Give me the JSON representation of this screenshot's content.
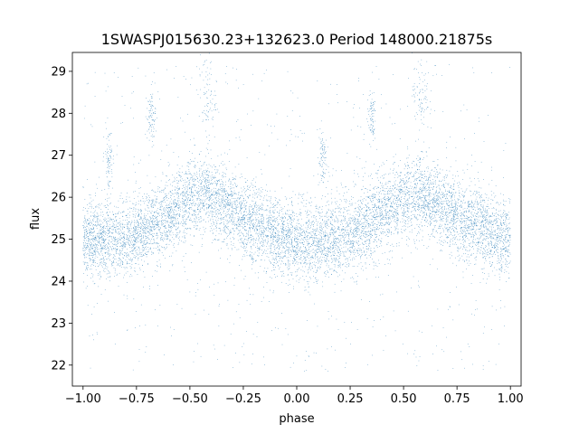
{
  "chart_data": {
    "type": "scatter",
    "title": "1SWASPJ015630.23+132623.0 Period 148000.21875s",
    "xlabel": "phase",
    "ylabel": "flux",
    "xlim": [
      -1.05,
      1.05
    ],
    "ylim": [
      21.5,
      29.45
    ],
    "xticks": [
      -1.0,
      -0.75,
      -0.5,
      -0.25,
      0.0,
      0.25,
      0.5,
      0.75,
      1.0
    ],
    "xtick_labels": [
      "−1.00",
      "−0.75",
      "−0.50",
      "−0.25",
      "0.00",
      "0.25",
      "0.50",
      "0.75",
      "1.00"
    ],
    "yticks": [
      22,
      23,
      24,
      25,
      26,
      27,
      28,
      29
    ],
    "ytick_labels": [
      "22",
      "23",
      "24",
      "25",
      "26",
      "27",
      "28",
      "29"
    ],
    "grid": false,
    "legend": "none",
    "marker_color": "#1f77b4",
    "point_size": 0.6,
    "series": [
      {
        "profile_phase": [
          -1.0,
          -0.9,
          -0.8,
          -0.7,
          -0.6,
          -0.5,
          -0.42,
          -0.35,
          -0.25,
          -0.15,
          -0.05,
          0.0,
          0.1,
          0.2,
          0.3,
          0.4,
          0.5,
          0.58,
          0.65,
          0.75,
          0.85,
          0.95,
          1.0
        ],
        "profile_flux": [
          25.0,
          24.95,
          25.0,
          25.25,
          25.6,
          25.95,
          26.05,
          25.85,
          25.45,
          25.2,
          25.0,
          24.95,
          24.9,
          25.05,
          25.3,
          25.65,
          25.95,
          26.05,
          25.85,
          25.55,
          25.3,
          25.05,
          25.0
        ],
        "scatter_std": 0.45,
        "n_points": 9000,
        "outlier_range": [
          21.8,
          29.2
        ],
        "n_outliers": 700,
        "clusters": [
          {
            "phase": -0.88,
            "flux": 26.9,
            "spread_flux": 0.4,
            "spread_phase": 0.01
          },
          {
            "phase": -0.68,
            "flux": 27.9,
            "spread_flux": 0.3,
            "spread_phase": 0.01
          },
          {
            "phase": -0.42,
            "flux": 28.4,
            "spread_flux": 0.5,
            "spread_phase": 0.02
          },
          {
            "phase": 0.12,
            "flux": 26.9,
            "spread_flux": 0.4,
            "spread_phase": 0.01
          },
          {
            "phase": 0.35,
            "flux": 27.9,
            "spread_flux": 0.3,
            "spread_phase": 0.01
          },
          {
            "phase": 0.58,
            "flux": 28.5,
            "spread_flux": 0.5,
            "spread_phase": 0.02
          }
        ]
      }
    ]
  }
}
